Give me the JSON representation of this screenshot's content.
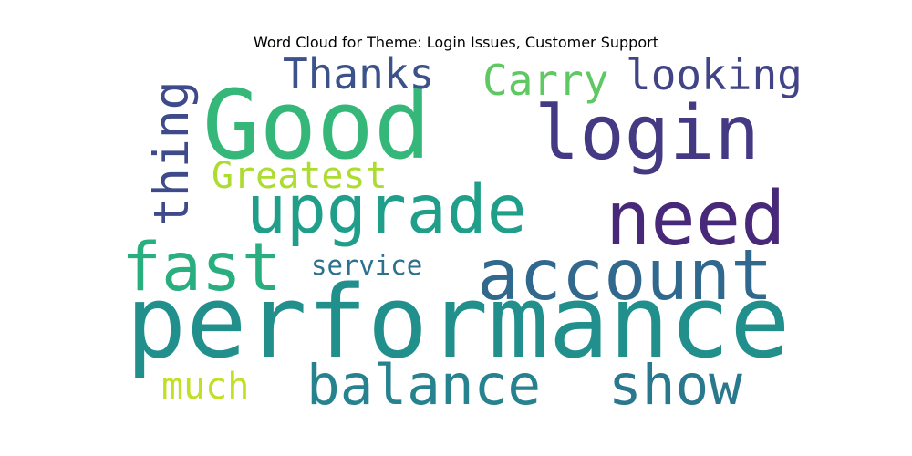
{
  "chart_data": {
    "type": "wordcloud",
    "title": "Word Cloud for Theme: Login Issues, Customer Support",
    "words": [
      {
        "text": "performance",
        "weight": 1.0,
        "color": "#21908d"
      },
      {
        "text": "Good",
        "weight": 0.94,
        "color": "#35b779"
      },
      {
        "text": "login",
        "weight": 0.74,
        "color": "#443983"
      },
      {
        "text": "need",
        "weight": 0.74,
        "color": "#482878"
      },
      {
        "text": "account",
        "weight": 0.7,
        "color": "#31688e"
      },
      {
        "text": "upgrade",
        "weight": 0.66,
        "color": "#1f9e89"
      },
      {
        "text": "fast",
        "weight": 0.66,
        "color": "#29af7f"
      },
      {
        "text": "balance",
        "weight": 0.55,
        "color": "#26828e"
      },
      {
        "text": "show",
        "weight": 0.55,
        "color": "#2a788e"
      },
      {
        "text": "thing",
        "weight": 0.48,
        "color": "#3e4a89"
      },
      {
        "text": "Thanks",
        "weight": 0.42,
        "color": "#3b528b"
      },
      {
        "text": "Carry",
        "weight": 0.42,
        "color": "#5ec962"
      },
      {
        "text": "looking",
        "weight": 0.42,
        "color": "#414487"
      },
      {
        "text": "Greatest",
        "weight": 0.36,
        "color": "#addc30"
      },
      {
        "text": "much",
        "weight": 0.36,
        "color": "#c2df23"
      },
      {
        "text": "service",
        "weight": 0.26,
        "color": "#2c728e"
      }
    ]
  }
}
